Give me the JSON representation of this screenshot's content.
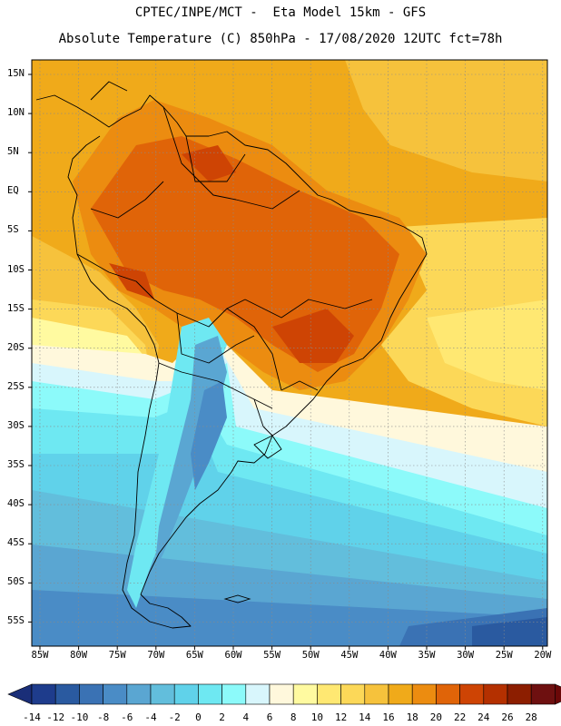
{
  "header": {
    "line1": "CPTEC/INPE/MCT -  Eta Model 15km - GFS",
    "line2": "Absolute Temperature (C) 850hPa - 17/08/2020 12UTC fct=78h"
  },
  "axes": {
    "lat_labels": [
      "15N",
      "10N",
      "5N",
      "EQ",
      "5S",
      "10S",
      "15S",
      "20S",
      "25S",
      "30S",
      "35S",
      "40S",
      "45S",
      "50S",
      "55S"
    ],
    "lon_labels": [
      "85W",
      "80W",
      "75W",
      "70W",
      "65W",
      "60W",
      "55W",
      "50W",
      "45W",
      "40W",
      "35W",
      "30W",
      "25W",
      "20W"
    ]
  },
  "colorbar": {
    "labels": [
      "-14",
      "-12",
      "-10",
      "-8",
      "-6",
      "-4",
      "-2",
      "0",
      "2",
      "4",
      "6",
      "8",
      "10",
      "12",
      "14",
      "16",
      "18",
      "20",
      "22",
      "24",
      "26",
      "28"
    ],
    "colors": [
      "#1e3c8c",
      "#2a5aa0",
      "#3a72b4",
      "#4a8cc6",
      "#5aa6d2",
      "#62bedc",
      "#60d2ea",
      "#6ee8f2",
      "#8cfafa",
      "#d8f6fc",
      "#fff8dc",
      "#fffaa0",
      "#ffe872",
      "#fcd858",
      "#f6c23c",
      "#f0aa1a",
      "#ec8c10",
      "#e06408",
      "#ce4404",
      "#b43000",
      "#8c1e00",
      "#6e1010"
    ],
    "end_low": "#1a2e78",
    "end_high": "#6a0808"
  }
}
